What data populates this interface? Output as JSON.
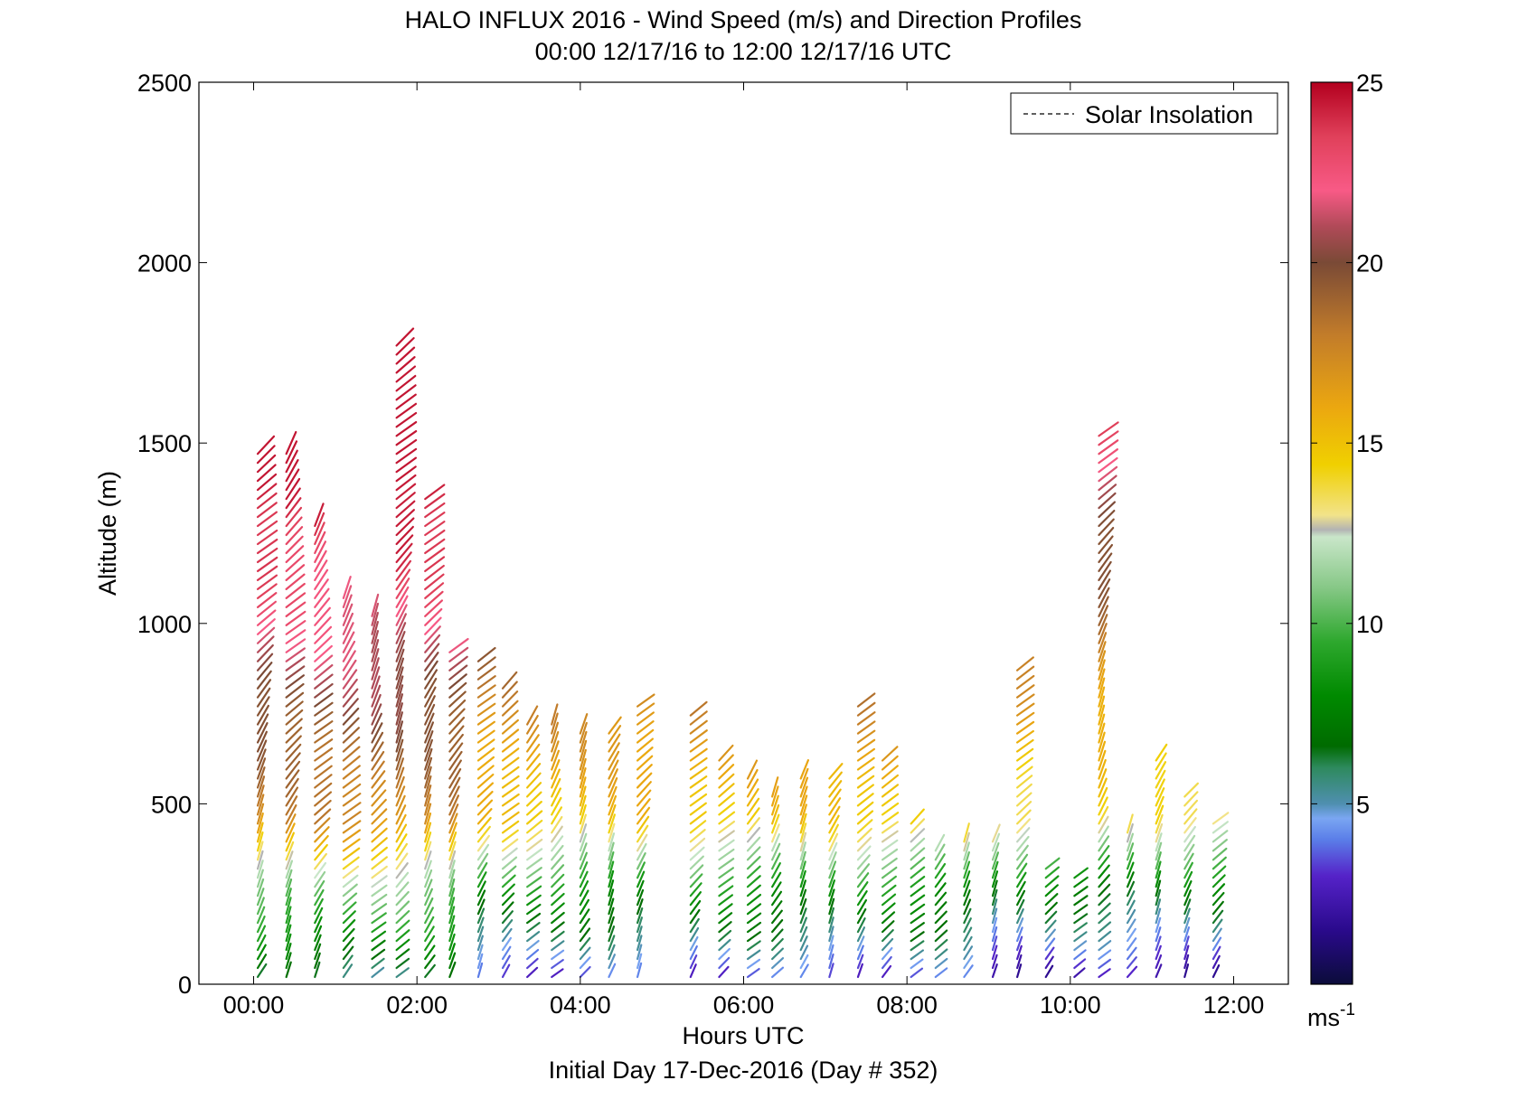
{
  "chart_data": {
    "type": "wind-barb-profile",
    "title": "HALO INFLUX 2016 - Wind Speed (m/s) and Direction Profiles",
    "subtitle": "00:00 12/17/16 to 12:00 12/17/16  UTC",
    "xlabel": "Hours UTC",
    "ylabel": "Altitude (m)",
    "footer": "Initial Day 17-Dec-2016 (Day # 352)",
    "xlim": [
      -0.67,
      12.67
    ],
    "ylim": [
      0,
      2500
    ],
    "xticks": [
      0,
      2,
      4,
      6,
      8,
      10,
      12
    ],
    "xtick_labels": [
      "00:00",
      "02:00",
      "04:00",
      "06:00",
      "08:00",
      "10:00",
      "12:00"
    ],
    "yticks": [
      0,
      500,
      1000,
      1500,
      2000,
      2500
    ],
    "ytick_labels": [
      "0",
      "500",
      "1000",
      "1500",
      "2000",
      "2500"
    ],
    "grid": false,
    "legend": {
      "entries": [
        "Solar Insolation"
      ],
      "position": "top-right",
      "line_style": "dashed",
      "line_color": "#000000"
    },
    "colorbar": {
      "range": [
        0,
        25
      ],
      "ticks": [
        5,
        10,
        15,
        20,
        25
      ],
      "tick_labels": [
        "5",
        "10",
        "15",
        "20",
        "25"
      ],
      "unit_label": "ms",
      "unit_exponent": "-1",
      "stops": [
        {
          "v": 0,
          "c": "#0b0c3a"
        },
        {
          "v": 1.5,
          "c": "#2a0a8c"
        },
        {
          "v": 3,
          "c": "#5522c8"
        },
        {
          "v": 4,
          "c": "#5a7de8"
        },
        {
          "v": 4.6,
          "c": "#7aa6f2"
        },
        {
          "v": 5,
          "c": "#4f8fb0"
        },
        {
          "v": 6,
          "c": "#2e8a5e"
        },
        {
          "v": 6.6,
          "c": "#006b00"
        },
        {
          "v": 8,
          "c": "#008a00"
        },
        {
          "v": 9.5,
          "c": "#2ea82e"
        },
        {
          "v": 11,
          "c": "#87c887"
        },
        {
          "v": 12.4,
          "c": "#c9e6c9"
        },
        {
          "v": 12.6,
          "c": "#b3b3b3"
        },
        {
          "v": 13,
          "c": "#f2e38a"
        },
        {
          "v": 14.4,
          "c": "#f0d000"
        },
        {
          "v": 16,
          "c": "#eba710"
        },
        {
          "v": 18,
          "c": "#c27c2a"
        },
        {
          "v": 20,
          "c": "#7a4a36"
        },
        {
          "v": 21,
          "c": "#b04a58"
        },
        {
          "v": 22,
          "c": "#f85a86"
        },
        {
          "v": 23.5,
          "c": "#e0405a"
        },
        {
          "v": 25,
          "c": "#b3001e"
        }
      ]
    },
    "profiles": [
      {
        "t": 0.05,
        "top": 1480
      },
      {
        "t": 0.4,
        "top": 1480
      },
      {
        "t": 0.75,
        "top": 1280
      },
      {
        "t": 1.1,
        "top": 1075
      },
      {
        "t": 1.45,
        "top": 1035
      },
      {
        "t": 1.75,
        "top": 1780
      },
      {
        "t": 2.1,
        "top": 1360
      },
      {
        "t": 2.4,
        "top": 940
      },
      {
        "t": 2.75,
        "top": 900
      },
      {
        "t": 3.05,
        "top": 825
      },
      {
        "t": 3.35,
        "top": 740
      },
      {
        "t": 3.65,
        "top": 740
      },
      {
        "t": 4.0,
        "top": 700
      },
      {
        "t": 4.35,
        "top": 700
      },
      {
        "t": 4.7,
        "top": 785
      },
      {
        "t": 5.35,
        "top": 745
      },
      {
        "t": 5.7,
        "top": 620
      },
      {
        "t": 6.05,
        "top": 580
      },
      {
        "t": 6.35,
        "top": 540
      },
      {
        "t": 6.7,
        "top": 580
      },
      {
        "t": 7.05,
        "top": 580
      },
      {
        "t": 7.4,
        "top": 785
      },
      {
        "t": 7.7,
        "top": 620
      },
      {
        "t": 8.05,
        "top": 460
      },
      {
        "t": 8.35,
        "top": 375
      },
      {
        "t": 8.7,
        "top": 415
      },
      {
        "t": 9.05,
        "top": 415
      },
      {
        "t": 9.35,
        "top": 875
      },
      {
        "t": 9.7,
        "top": 335
      },
      {
        "t": 10.05,
        "top": 310
      },
      {
        "t": 10.35,
        "top": 1525
      },
      {
        "t": 10.7,
        "top": 420
      },
      {
        "t": 11.05,
        "top": 620
      },
      {
        "t": 11.4,
        "top": 540
      },
      {
        "t": 11.75,
        "top": 455
      }
    ]
  }
}
